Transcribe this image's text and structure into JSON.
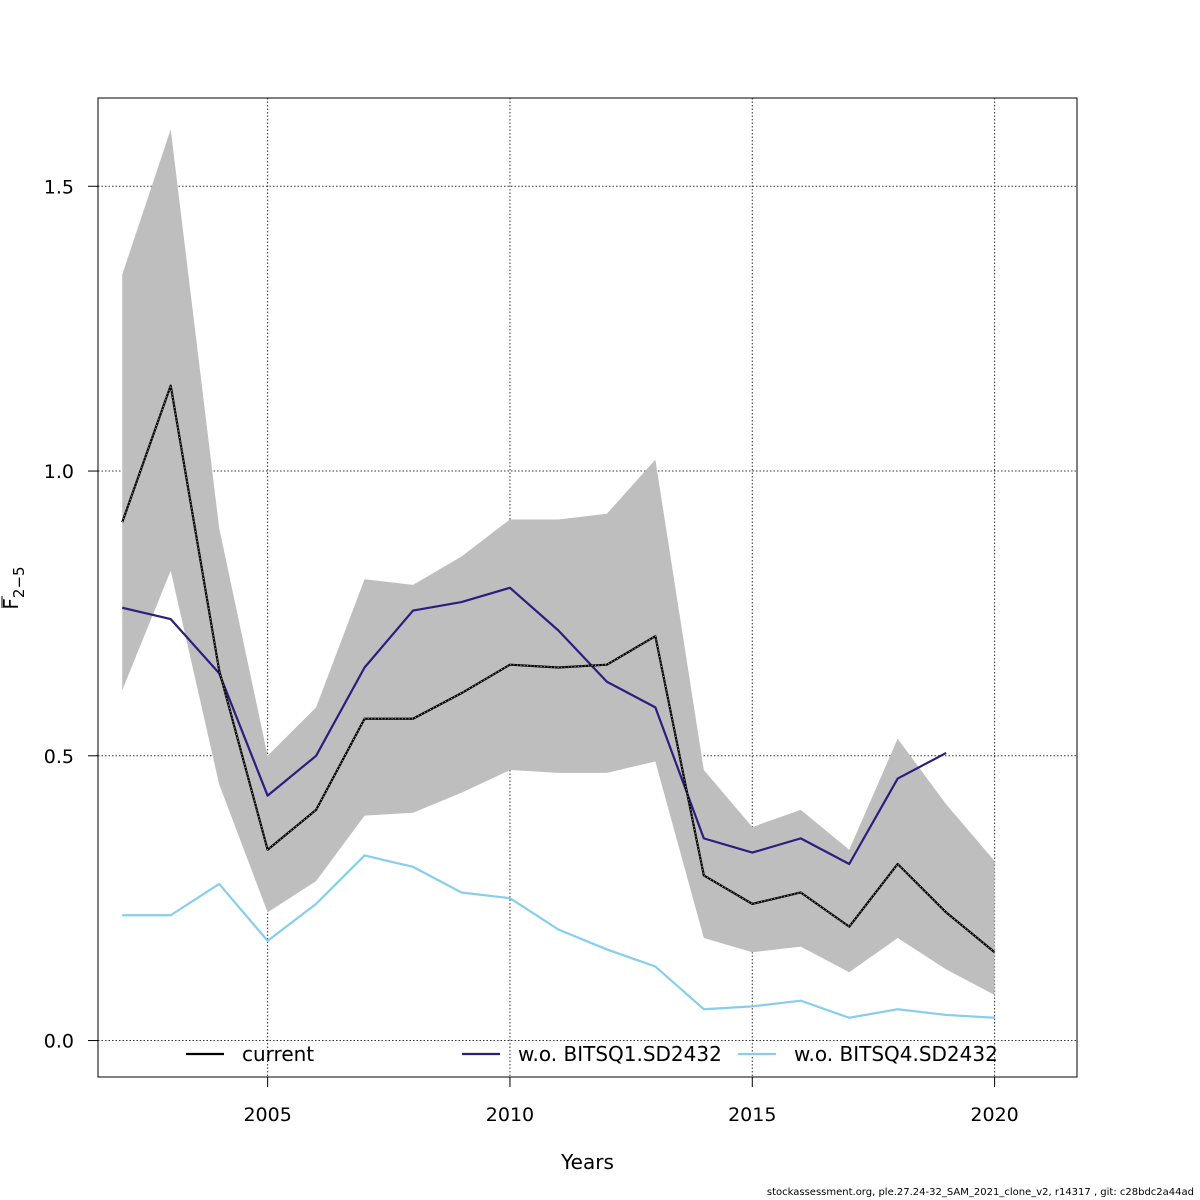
{
  "chart_data": {
    "type": "line",
    "xlabel": "Years",
    "ylabel_main": "F",
    "ylabel_sub": "2−5",
    "xlim": [
      2001.5,
      2021.7
    ],
    "ylim": [
      -0.064,
      1.655
    ],
    "xticks": [
      2005,
      2010,
      2015,
      2020
    ],
    "yticks": [
      0.0,
      0.5,
      1.0,
      1.5
    ],
    "ytick_labels": [
      "0.0",
      "0.5",
      "1.0",
      "1.5"
    ],
    "grid": true,
    "legend_position": "bottom",
    "x": [
      2002,
      2003,
      2004,
      2005,
      2006,
      2007,
      2008,
      2009,
      2010,
      2011,
      2012,
      2013,
      2014,
      2015,
      2016,
      2017,
      2018,
      2019,
      2020
    ],
    "band": {
      "upper": [
        1.345,
        1.6,
        0.9,
        0.5,
        0.585,
        0.81,
        0.8,
        0.85,
        0.915,
        0.915,
        0.925,
        1.02,
        0.475,
        0.375,
        0.405,
        0.335,
        0.53,
        0.415,
        0.315
      ],
      "lower": [
        0.615,
        0.825,
        0.45,
        0.225,
        0.28,
        0.395,
        0.4,
        0.435,
        0.475,
        0.47,
        0.47,
        0.49,
        0.18,
        0.155,
        0.165,
        0.12,
        0.18,
        0.125,
        0.08
      ],
      "color": "#bebebe"
    },
    "series": [
      {
        "name": "current",
        "color": "#000000",
        "values": [
          0.91,
          1.15,
          0.65,
          0.335,
          0.405,
          0.565,
          0.565,
          0.61,
          0.66,
          0.655,
          0.66,
          0.71,
          0.29,
          0.24,
          0.26,
          0.2,
          0.31,
          0.225,
          0.155
        ]
      },
      {
        "name": "w.o. BITSQ1.SD2432",
        "color": "#2c1e7e",
        "values": [
          0.76,
          0.74,
          0.645,
          0.43,
          0.5,
          0.655,
          0.755,
          0.77,
          0.795,
          0.72,
          0.63,
          0.585,
          0.355,
          0.33,
          0.355,
          0.31,
          0.46,
          0.505,
          null
        ]
      },
      {
        "name": "w.o. BITSQ4.SD2432",
        "color": "#87ceeb",
        "values": [
          0.22,
          0.22,
          0.275,
          0.175,
          0.24,
          0.325,
          0.305,
          0.26,
          0.25,
          0.195,
          0.16,
          0.13,
          0.055,
          0.06,
          0.07,
          0.04,
          0.055,
          0.045,
          0.04
        ]
      }
    ],
    "legend": [
      {
        "label": "current",
        "color": "#000000"
      },
      {
        "label": "w.o. BITSQ1.SD2432",
        "color": "#2c1e7e"
      },
      {
        "label": "w.o. BITSQ4.SD2432",
        "color": "#87ceeb"
      }
    ]
  },
  "footer": "stockassessment.org, ple.27.24-32_SAM_2021_clone_v2, r14317 , git: c28bdc2a44ad"
}
